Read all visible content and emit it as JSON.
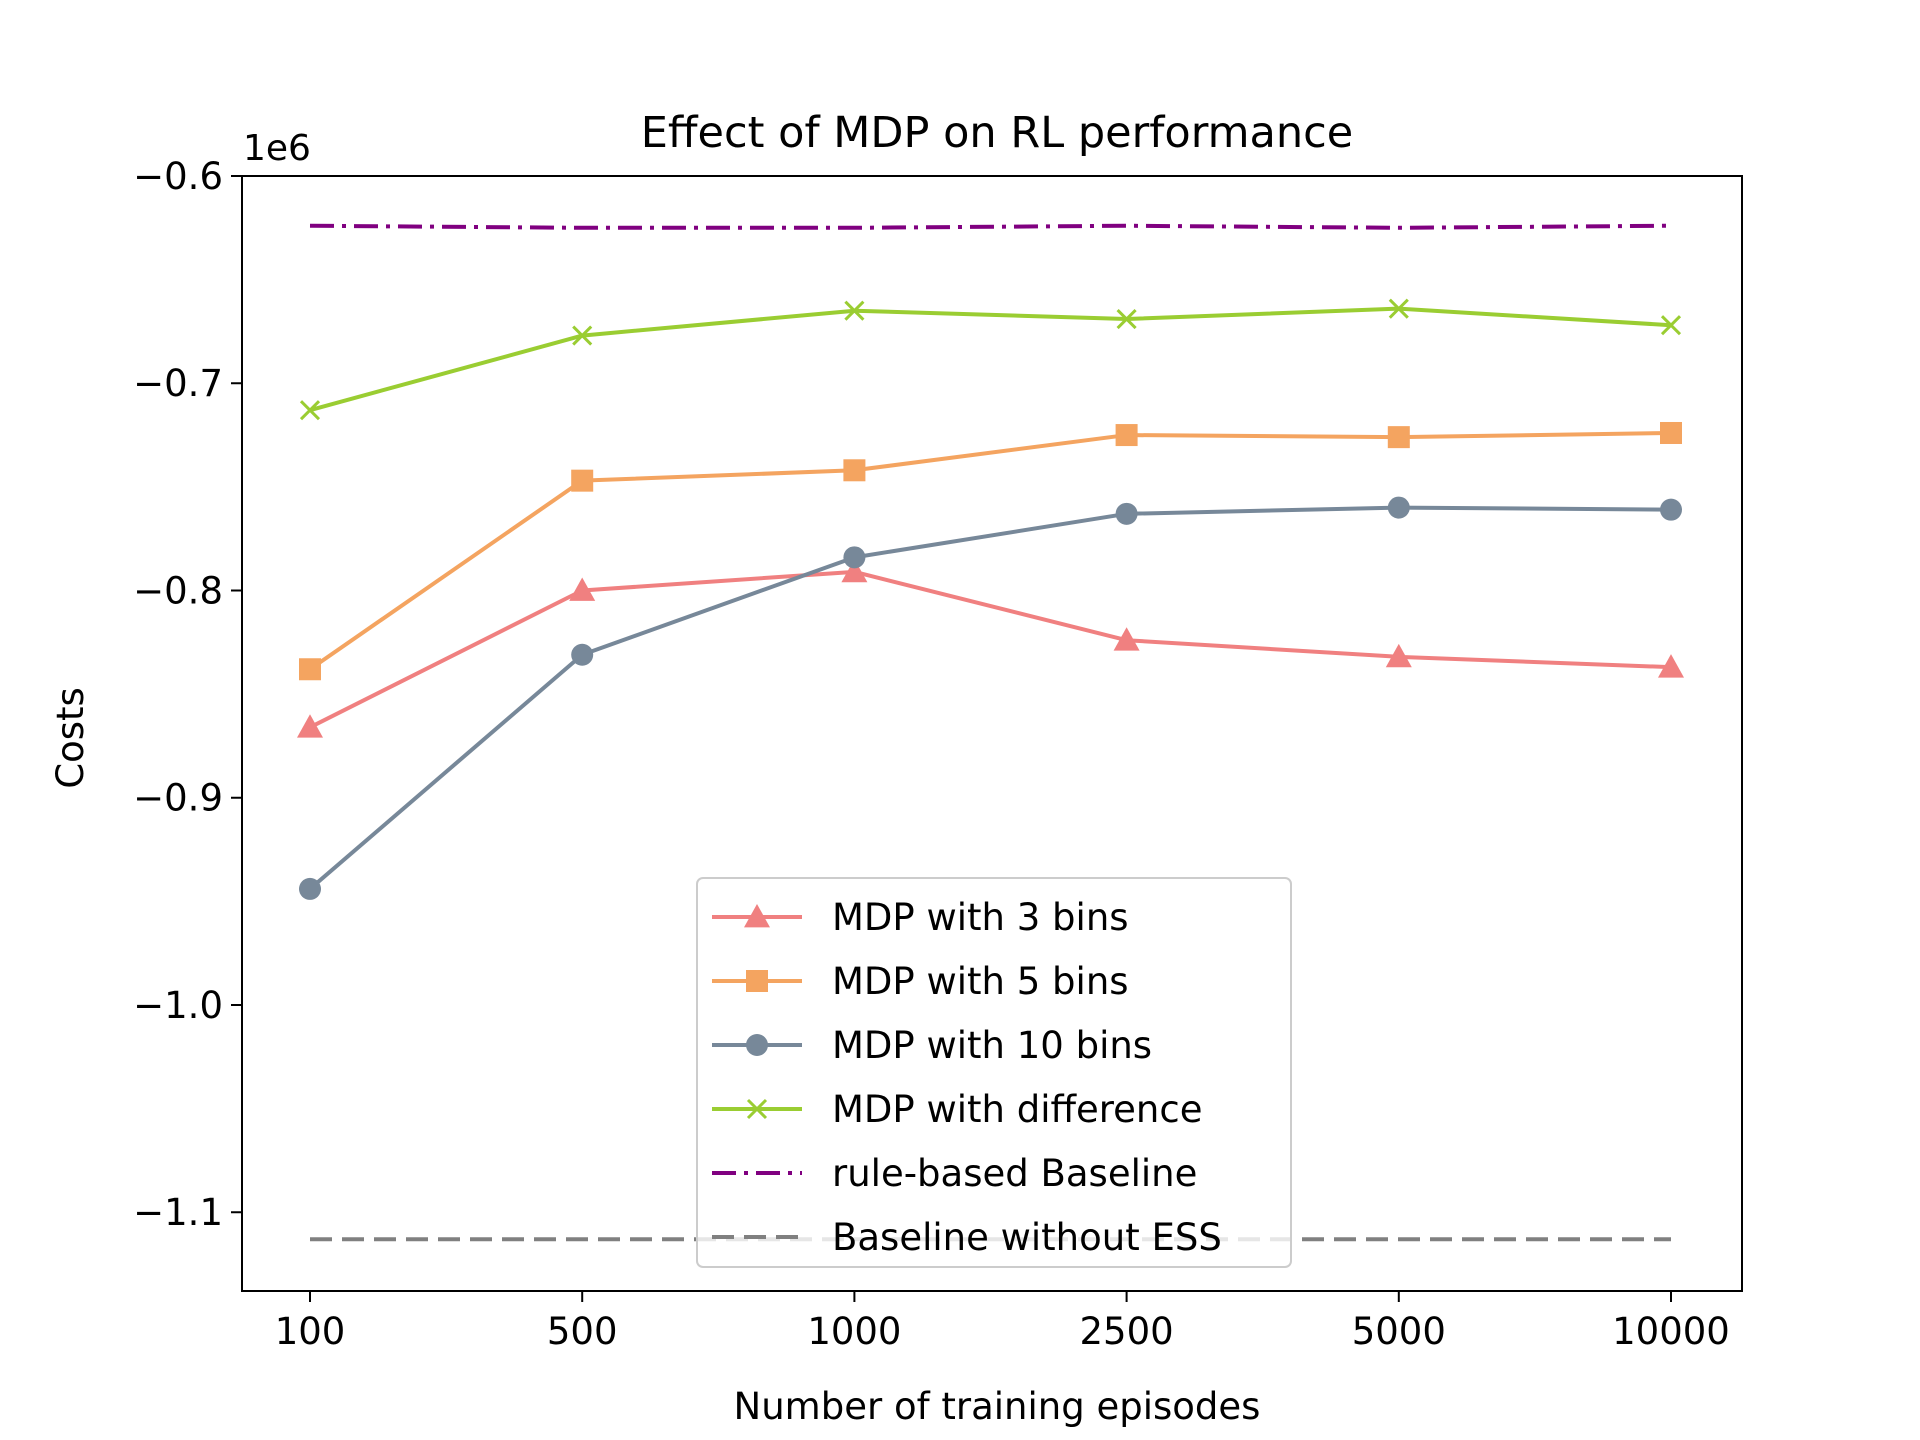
{
  "chart_data": {
    "type": "line",
    "title": "Effect of MDP on RL performance",
    "xlabel": "Number of training episodes",
    "ylabel": "Costs",
    "y_offset_label": "1e6",
    "categories": [
      "100",
      "500",
      "1000",
      "2500",
      "5000",
      "10000"
    ],
    "ylim": [
      -1.138,
      -0.6
    ],
    "yticks": [
      -0.6,
      -0.7,
      -0.8,
      -0.9,
      -1.0,
      -1.1
    ],
    "ytick_labels": [
      "−0.6",
      "−0.7",
      "−0.8",
      "−0.9",
      "−1.0",
      "−1.1"
    ],
    "grid": false,
    "legend_position": "lower center",
    "series": [
      {
        "name": "MDP with 3 bins",
        "color": "#f08080",
        "marker": "triangle",
        "dash": "solid",
        "values": [
          -0.866,
          -0.8,
          -0.791,
          -0.824,
          -0.832,
          -0.837
        ]
      },
      {
        "name": "MDP with 5 bins",
        "color": "#f4a460",
        "marker": "square",
        "dash": "solid",
        "values": [
          -0.838,
          -0.747,
          -0.742,
          -0.725,
          -0.726,
          -0.724
        ]
      },
      {
        "name": "MDP with 10 bins",
        "color": "#778899",
        "marker": "circle",
        "dash": "solid",
        "values": [
          -0.944,
          -0.831,
          -0.784,
          -0.763,
          -0.76,
          -0.761
        ]
      },
      {
        "name": "MDP with difference",
        "color": "#9acd32",
        "marker": "x",
        "dash": "solid",
        "values": [
          -0.713,
          -0.677,
          -0.665,
          -0.669,
          -0.664,
          -0.672
        ]
      },
      {
        "name": "rule-based Baseline",
        "color": "#800080",
        "marker": "none",
        "dash": "dashdot",
        "values": [
          -0.624,
          -0.625,
          -0.625,
          -0.624,
          -0.625,
          -0.624
        ]
      },
      {
        "name": "Baseline without ESS",
        "color": "#808080",
        "marker": "none",
        "dash": "dashed",
        "values": [
          -1.113,
          -1.113,
          -1.113,
          -1.113,
          -1.113,
          -1.113
        ]
      }
    ]
  }
}
